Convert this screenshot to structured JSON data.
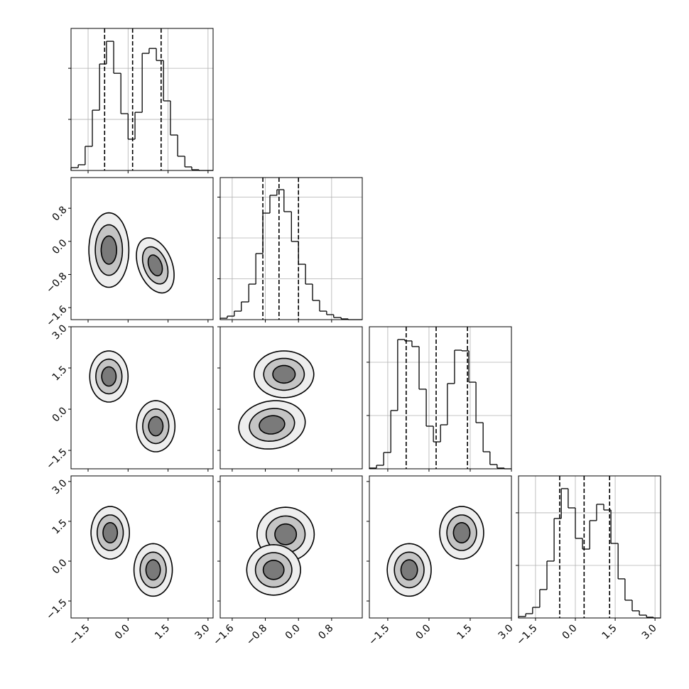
{
  "chart_data": [
    {
      "type": "histogram",
      "xlim": [
        -2.14,
        3.19
      ],
      "xticks": [
        -1.5,
        0,
        1.5,
        3
      ],
      "ylim": [
        0,
        1390
      ],
      "yticks": [
        500,
        1000
      ],
      "grid": true,
      "bins": [
        -2.14,
        -1.87,
        -1.61,
        -1.34,
        -1.07,
        -0.81,
        -0.54,
        -0.27,
        0.0,
        0.26,
        0.53,
        0.79,
        1.06,
        1.33,
        1.59,
        1.86,
        2.13,
        2.39,
        2.66,
        2.92,
        3.19
      ],
      "values": [
        28,
        56,
        236,
        590,
        1042,
        1264,
        951,
        556,
        306,
        569,
        1146,
        1194,
        1076,
        681,
        347,
        139,
        35,
        7,
        0,
        0
      ],
      "quantiles": [
        -0.88,
        0.17,
        1.24
      ]
    },
    {
      "type": "density",
      "xlim": [
        -2.14,
        3.19
      ],
      "xticks": [
        -1.5,
        0,
        1.5,
        3
      ],
      "ylim": [
        -1.89,
        1.54
      ],
      "yticks": [
        {
          "value": -1.6,
          "label": "−1.6"
        },
        {
          "value": -0.8,
          "label": "−0.8"
        },
        {
          "value": 0,
          "label": "0.0"
        },
        {
          "value": 0.8,
          "label": "0.8"
        }
      ],
      "contours": [
        {
          "x": -0.72,
          "y": -0.21,
          "rx": 0.75,
          "ry": 0.9,
          "angle": 0
        },
        {
          "x": -0.72,
          "y": -0.21,
          "rx": 0.51,
          "ry": 0.61,
          "angle": 0
        },
        {
          "x": -0.72,
          "y": -0.21,
          "rx": 0.29,
          "ry": 0.34,
          "angle": 0
        },
        {
          "x": 1.02,
          "y": -0.58,
          "rx": 0.8,
          "ry": 0.55,
          "angle": -40
        },
        {
          "x": 1.02,
          "y": -0.58,
          "rx": 0.54,
          "ry": 0.37,
          "angle": -40
        },
        {
          "x": 1.02,
          "y": -0.58,
          "rx": 0.3,
          "ry": 0.21,
          "angle": -40
        }
      ]
    },
    {
      "type": "histogram",
      "xlim": [
        -1.89,
        1.54
      ],
      "xticks": [
        -1.6,
        -0.8,
        0,
        0.8
      ],
      "ylim": [
        0,
        1739
      ],
      "yticks": [
        500,
        1000,
        1500
      ],
      "grid": true,
      "bins": [
        -1.89,
        -1.72,
        -1.55,
        -1.38,
        -1.2,
        -1.03,
        -0.86,
        -0.69,
        -0.52,
        -0.35,
        -0.17,
        0.0,
        0.17,
        0.34,
        0.51,
        0.68,
        0.85,
        1.03,
        1.2,
        1.37,
        1.54
      ],
      "values": [
        17,
        43,
        104,
        217,
        435,
        809,
        1304,
        1522,
        1591,
        1322,
        957,
        678,
        435,
        235,
        104,
        61,
        26,
        9,
        0,
        0
      ],
      "quantiles": [
        -0.86,
        -0.47,
        0.0
      ]
    },
    {
      "type": "density",
      "xlim": [
        -2.14,
        3.19
      ],
      "xticks": [
        -1.5,
        0,
        1.5,
        3
      ],
      "ylim": [
        -2.17,
        3.0
      ],
      "yticks": [
        {
          "value": -1.5,
          "label": "−1.5"
        },
        {
          "value": 0,
          "label": "0.0"
        },
        {
          "value": 1.5,
          "label": "1.5"
        },
        {
          "value": 3,
          "label": "3.0"
        }
      ],
      "contours": [
        {
          "x": -0.72,
          "y": 1.19,
          "rx": 0.72,
          "ry": 0.93,
          "angle": 0
        },
        {
          "x": -0.72,
          "y": 1.19,
          "rx": 0.49,
          "ry": 0.63,
          "angle": 0
        },
        {
          "x": -0.72,
          "y": 1.19,
          "rx": 0.27,
          "ry": 0.35,
          "angle": 0
        },
        {
          "x": 1.04,
          "y": -0.62,
          "rx": 0.72,
          "ry": 0.93,
          "angle": 0
        },
        {
          "x": 1.04,
          "y": -0.62,
          "rx": 0.49,
          "ry": 0.63,
          "angle": 0
        },
        {
          "x": 1.04,
          "y": -0.62,
          "rx": 0.27,
          "ry": 0.35,
          "angle": 0
        }
      ]
    },
    {
      "type": "density",
      "xlim": [
        -1.89,
        1.54
      ],
      "xticks": [
        -1.6,
        -0.8,
        0,
        0.8
      ],
      "ylim": [
        -2.17,
        3.0
      ],
      "yticks": [
        -1.5,
        0,
        1.5,
        3
      ],
      "contours": [
        {
          "x": -0.35,
          "y": 1.27,
          "rx": 0.72,
          "ry": 0.85,
          "angle": 0
        },
        {
          "x": -0.35,
          "y": 1.27,
          "rx": 0.49,
          "ry": 0.58,
          "angle": 0
        },
        {
          "x": -0.35,
          "y": 1.27,
          "rx": 0.27,
          "ry": 0.32,
          "angle": 0
        },
        {
          "x": -0.64,
          "y": -0.57,
          "rx": 0.78,
          "ry": 0.9,
          "angle": -25
        },
        {
          "x": -0.64,
          "y": -0.57,
          "rx": 0.53,
          "ry": 0.61,
          "angle": -25
        },
        {
          "x": -0.64,
          "y": -0.57,
          "rx": 0.3,
          "ry": 0.34,
          "angle": -25
        }
      ]
    },
    {
      "type": "histogram",
      "xlim": [
        -2.17,
        3.0
      ],
      "xticks": [
        -1.5,
        0,
        1.5,
        3
      ],
      "ylim": [
        0,
        1333
      ],
      "yticks": [
        500,
        1000
      ],
      "grid": true,
      "bins": [
        -2.17,
        -1.91,
        -1.65,
        -1.39,
        -1.14,
        -0.88,
        -0.62,
        -0.36,
        -0.1,
        0.16,
        0.42,
        0.67,
        0.93,
        1.19,
        1.45,
        1.71,
        1.97,
        2.22,
        2.48,
        2.74,
        3.0
      ],
      "values": [
        7,
        33,
        153,
        547,
        1213,
        1200,
        1147,
        747,
        400,
        253,
        413,
        800,
        1113,
        1107,
        813,
        433,
        160,
        40,
        7,
        0
      ],
      "quantiles": [
        -0.83,
        0.26,
        1.4
      ]
    },
    {
      "type": "density",
      "xlim": [
        -2.14,
        3.19
      ],
      "xticks": [
        {
          "value": -1.5,
          "label": "−1.5"
        },
        {
          "value": 0,
          "label": "0.0"
        },
        {
          "value": 1.5,
          "label": "1.5"
        },
        {
          "value": 3,
          "label": "3.0"
        }
      ],
      "ylim": [
        -2.14,
        3.21
      ],
      "yticks": [
        {
          "value": -1.5,
          "label": "−1.5"
        },
        {
          "value": 0,
          "label": "0.0"
        },
        {
          "value": 1.5,
          "label": "1.5"
        },
        {
          "value": 3,
          "label": "3.0"
        }
      ],
      "contours": [
        {
          "x": -0.67,
          "y": 1.07,
          "rx": 0.72,
          "ry": 0.99,
          "angle": 0
        },
        {
          "x": -0.67,
          "y": 1.07,
          "rx": 0.49,
          "ry": 0.67,
          "angle": 0
        },
        {
          "x": -0.67,
          "y": 1.07,
          "rx": 0.27,
          "ry": 0.38,
          "angle": 0
        },
        {
          "x": 0.94,
          "y": -0.33,
          "rx": 0.72,
          "ry": 0.99,
          "angle": 0
        },
        {
          "x": 0.94,
          "y": -0.33,
          "rx": 0.49,
          "ry": 0.67,
          "angle": 0
        },
        {
          "x": 0.94,
          "y": -0.33,
          "rx": 0.27,
          "ry": 0.38,
          "angle": 0
        }
      ]
    },
    {
      "type": "density",
      "xlim": [
        -1.89,
        1.54
      ],
      "xticks": [
        {
          "value": -1.6,
          "label": "−1.6"
        },
        {
          "value": -0.8,
          "label": "−0.8"
        },
        {
          "value": 0,
          "label": "0.0"
        },
        {
          "value": 0.8,
          "label": "0.8"
        }
      ],
      "ylim": [
        -2.14,
        3.21
      ],
      "yticks": [
        -1.5,
        0,
        1.5,
        3
      ],
      "contours": [
        {
          "x": -0.31,
          "y": 1.01,
          "rx": 0.69,
          "ry": 1.02,
          "angle": 0
        },
        {
          "x": -0.31,
          "y": 1.01,
          "rx": 0.47,
          "ry": 0.69,
          "angle": 0
        },
        {
          "x": -0.31,
          "y": 1.01,
          "rx": 0.26,
          "ry": 0.39,
          "angle": 0
        },
        {
          "x": -0.6,
          "y": -0.33,
          "rx": 0.65,
          "ry": 0.95,
          "angle": 0
        },
        {
          "x": -0.6,
          "y": -0.33,
          "rx": 0.44,
          "ry": 0.65,
          "angle": 0
        },
        {
          "x": -0.6,
          "y": -0.33,
          "rx": 0.25,
          "ry": 0.36,
          "angle": 0
        }
      ]
    },
    {
      "type": "density",
      "xlim": [
        -2.17,
        3.0
      ],
      "xticks": [
        {
          "value": -1.5,
          "label": "−1.5"
        },
        {
          "value": 0,
          "label": "0.0"
        },
        {
          "value": 1.5,
          "label": "1.5"
        },
        {
          "value": 3,
          "label": "3.0"
        }
      ],
      "ylim": [
        -2.14,
        3.21
      ],
      "yticks": [
        -1.5,
        0,
        1.5,
        3
      ],
      "contours": [
        {
          "x": -0.72,
          "y": -0.33,
          "rx": 0.8,
          "ry": 0.99,
          "angle": 0
        },
        {
          "x": -0.72,
          "y": -0.33,
          "rx": 0.54,
          "ry": 0.67,
          "angle": 0
        },
        {
          "x": -0.72,
          "y": -0.33,
          "rx": 0.3,
          "ry": 0.38,
          "angle": 0
        },
        {
          "x": 1.19,
          "y": 1.07,
          "rx": 0.8,
          "ry": 0.99,
          "angle": 0
        },
        {
          "x": 1.19,
          "y": 1.07,
          "rx": 0.54,
          "ry": 0.67,
          "angle": 0
        },
        {
          "x": 1.19,
          "y": 1.07,
          "rx": 0.3,
          "ry": 0.38,
          "angle": 0
        }
      ]
    },
    {
      "type": "histogram",
      "xlim": [
        -2.14,
        3.21
      ],
      "xticks": [
        {
          "value": -1.5,
          "label": "−1.5"
        },
        {
          "value": 0,
          "label": "0.0"
        },
        {
          "value": 1.5,
          "label": "1.5"
        },
        {
          "value": 3,
          "label": "3.0"
        }
      ],
      "ylim": [
        0,
        1351
      ],
      "yticks": [
        500,
        1000
      ],
      "grid": true,
      "bins": [
        -2.14,
        -1.87,
        -1.61,
        -1.34,
        -1.07,
        -0.8,
        -0.53,
        -0.27,
        0.0,
        0.27,
        0.54,
        0.8,
        1.07,
        1.34,
        1.61,
        1.87,
        2.14,
        2.41,
        2.68,
        2.94,
        3.21
      ],
      "values": [
        14,
        41,
        101,
        270,
        541,
        946,
        1230,
        1047,
        757,
        655,
        926,
        1081,
        1027,
        709,
        372,
        169,
        68,
        27,
        7,
        0
      ],
      "quantiles": [
        -0.59,
        0.33,
        1.29
      ]
    }
  ]
}
